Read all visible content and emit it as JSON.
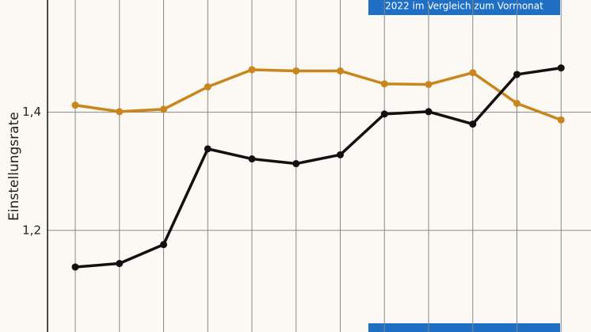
{
  "chart_data": {
    "type": "line",
    "y_label": "Einstellungsrate",
    "annotation": "2022 im Vergleich zum Vormonat",
    "categories": [
      null,
      null,
      null,
      null,
      null,
      null,
      null,
      null,
      null,
      null,
      null,
      null
    ],
    "series": [
      {
        "color": "#c8861e",
        "values": [
          1.412,
          1.401,
          1.405,
          1.443,
          1.472,
          1.47,
          1.47,
          1.448,
          1.447,
          1.467,
          1.415,
          1.387
        ]
      },
      {
        "color": "#111111",
        "values": [
          1.138,
          1.144,
          1.176,
          1.338,
          1.321,
          1.313,
          1.328,
          1.397,
          1.401,
          1.38,
          1.464,
          1.475
        ]
      }
    ],
    "ylim": [
      1.028,
      1.59
    ],
    "yticks": [
      {
        "value": 1.2,
        "label": "1,2"
      },
      {
        "value": 1.4,
        "label": "1,4"
      }
    ],
    "grid": true
  }
}
